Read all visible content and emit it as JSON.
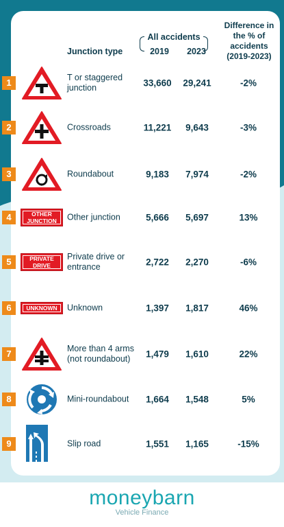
{
  "header": {
    "junction_type": "Junction type",
    "all_accidents": "All accidents",
    "year1": "2019",
    "year2": "2023",
    "difference": "Difference in the % of accidents (2019-2023)"
  },
  "rows": [
    {
      "n": "1",
      "label": "T or staggered junction",
      "y2019": "33,660",
      "y2023": "29,241",
      "diff": "-2%",
      "icon": "t-junction-sign-icon"
    },
    {
      "n": "2",
      "label": "Crossroads",
      "y2019": "11,221",
      "y2023": "9,643",
      "diff": "-3%",
      "icon": "crossroads-sign-icon"
    },
    {
      "n": "3",
      "label": "Roundabout",
      "y2019": "9,183",
      "y2023": "7,974",
      "diff": "-2%",
      "icon": "roundabout-sign-icon"
    },
    {
      "n": "4",
      "label": "Other junction",
      "y2019": "5,666",
      "y2023": "5,697",
      "diff": "13%",
      "icon": "other-junction-plate-icon",
      "plate": [
        "OTHER",
        "JUNCTION"
      ]
    },
    {
      "n": "5",
      "label": "Private drive or entrance",
      "y2019": "2,722",
      "y2023": "2,270",
      "diff": "-6%",
      "icon": "private-drive-plate-icon",
      "plate": [
        "PRIVATE",
        "DRIVE"
      ]
    },
    {
      "n": "6",
      "label": "Unknown",
      "y2019": "1,397",
      "y2023": "1,817",
      "diff": "46%",
      "icon": "unknown-plate-icon",
      "plate": [
        "UNKNOWN"
      ]
    },
    {
      "n": "7",
      "label": "More than 4 arms (not roundabout)",
      "y2019": "1,479",
      "y2023": "1,610",
      "diff": "22%",
      "icon": "multi-arm-junction-sign-icon"
    },
    {
      "n": "8",
      "label": "Mini-roundabout",
      "y2019": "1,664",
      "y2023": "1,548",
      "diff": "5%",
      "icon": "mini-roundabout-sign-icon"
    },
    {
      "n": "9",
      "label": "Slip road",
      "y2019": "1,551",
      "y2023": "1,165",
      "diff": "-15%",
      "icon": "slip-road-sign-icon"
    }
  ],
  "brand": {
    "name": "moneybarn",
    "tagline": "Vehicle Finance",
    "teal": "#11798f",
    "orange": "#ee8a1a",
    "sign_red": "#e21b24",
    "sign_blue": "#1f78b4"
  }
}
